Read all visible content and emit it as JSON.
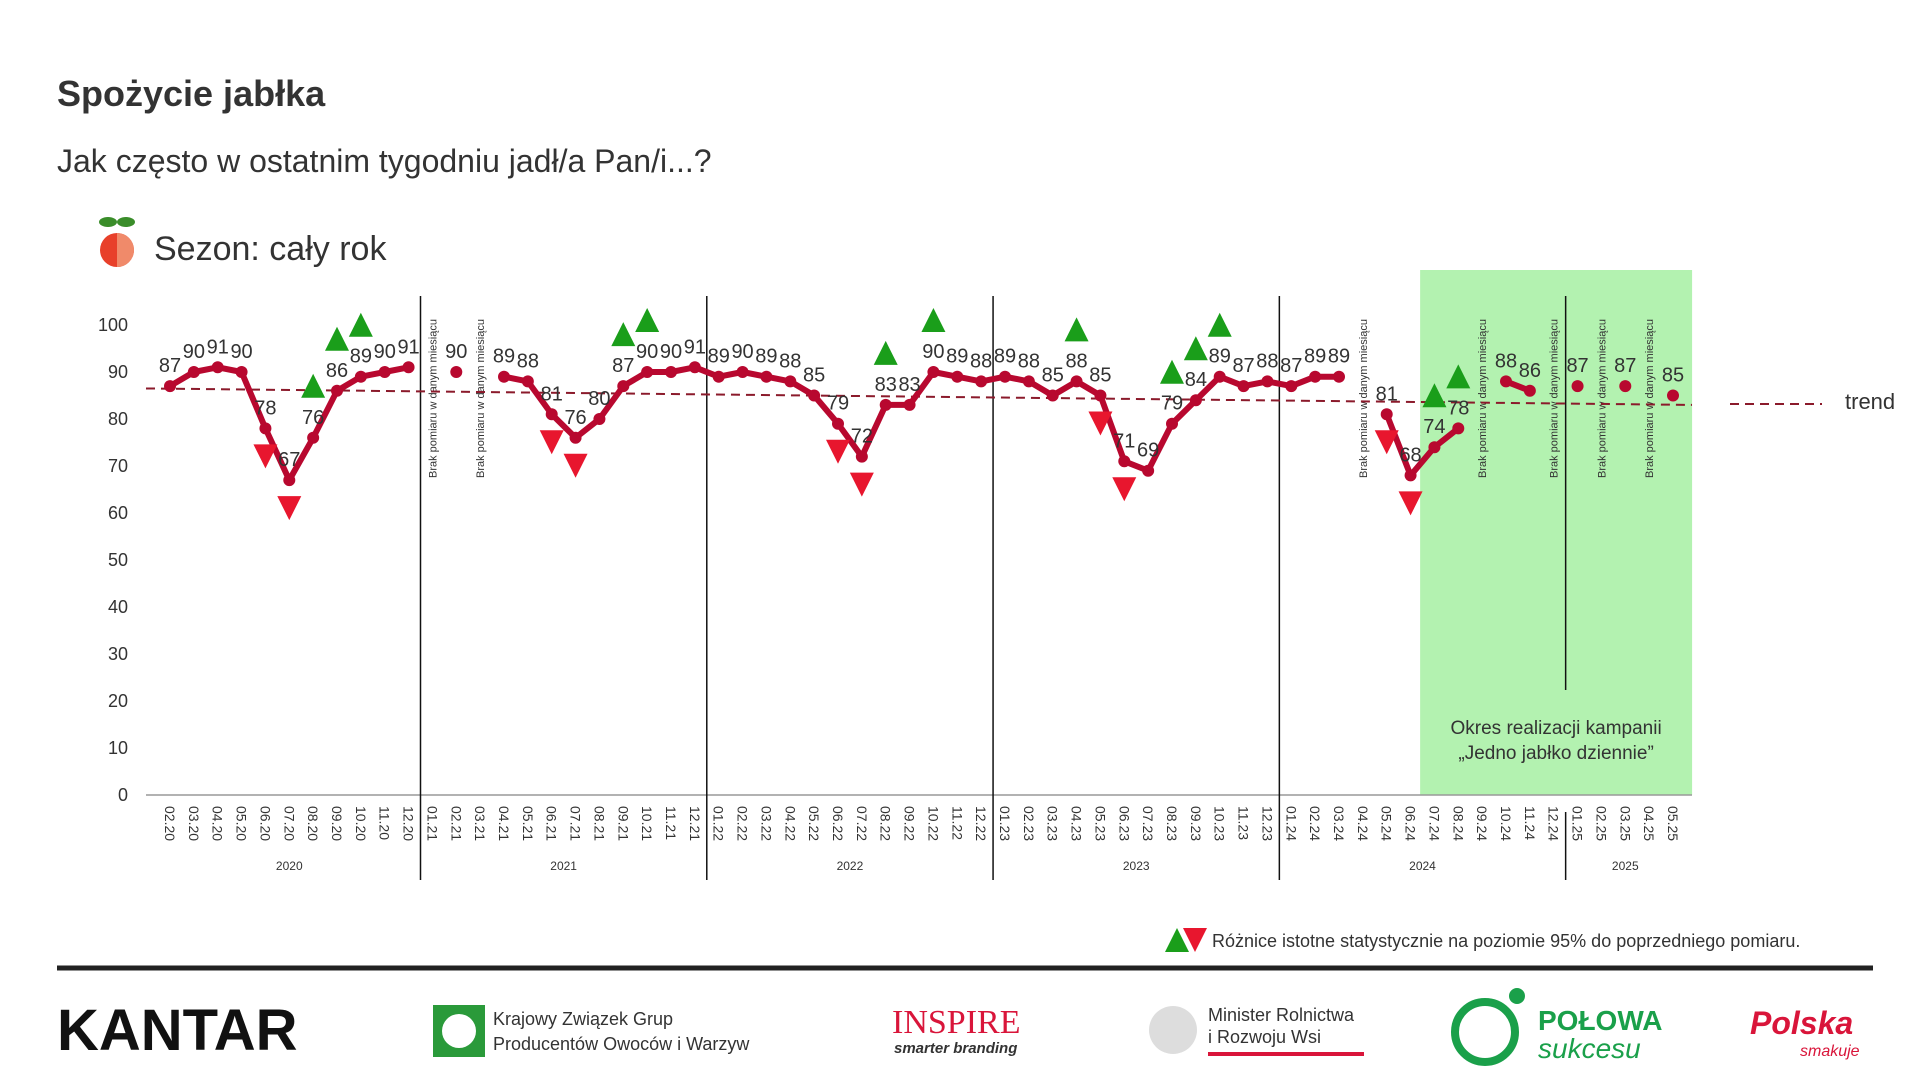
{
  "header": {
    "title": "Spożycie jabłka",
    "subtitle": "Jak często w ostatnim tygodniu jadł/a Pan/i...?",
    "season": "Sezon: cały rok"
  },
  "chart_data": {
    "type": "line",
    "categories": [
      "02.20",
      "03.20",
      "04.20",
      "05.20",
      "06.20",
      "07.20",
      "08.20",
      "09.20",
      "10.20",
      "11.20",
      "12.20",
      "01.21",
      "02.21",
      "03.21",
      "04.21",
      "05.21",
      "06.21",
      "07.21",
      "08.21",
      "09.21",
      "10.21",
      "11.21",
      "12.21",
      "01.22",
      "02.22",
      "03.22",
      "04.22",
      "05.22",
      "06.22",
      "07.22",
      "08.22",
      "09.22",
      "10.22",
      "11.22",
      "12.22",
      "01.23",
      "02.23",
      "03.23",
      "04.23",
      "05.23",
      "06.23",
      "07.23",
      "08.23",
      "09.23",
      "10.23",
      "11.23",
      "12.23",
      "01.24",
      "02.24",
      "03.24",
      "04.24",
      "05.24",
      "06.24",
      "07.24",
      "08.24",
      "09.24",
      "10.24",
      "11.24",
      "12.24",
      "01.25",
      "02.25",
      "03.25",
      "04.25",
      "05.25"
    ],
    "series": [
      {
        "color": "#b8082f",
        "values": [
          87,
          90,
          91,
          90,
          78,
          67,
          76,
          86,
          89,
          90,
          91,
          null,
          90,
          null,
          89,
          88,
          81,
          76,
          80,
          87,
          90,
          90,
          91,
          89,
          90,
          89,
          88,
          85,
          79,
          72,
          83,
          83,
          90,
          89,
          88,
          89,
          88,
          85,
          88,
          85,
          71,
          69,
          79,
          84,
          89,
          87,
          88,
          87,
          89,
          89,
          null,
          81,
          68,
          74,
          78,
          null,
          88,
          86,
          null,
          87,
          null,
          87,
          null,
          85
        ],
        "significance": [
          null,
          null,
          null,
          null,
          "down",
          "down",
          "up",
          "up",
          "up",
          null,
          null,
          null,
          null,
          null,
          null,
          null,
          "down",
          "down",
          null,
          "up",
          "up",
          null,
          null,
          null,
          null,
          null,
          null,
          null,
          "down",
          "down",
          "up",
          null,
          "up",
          null,
          null,
          null,
          null,
          null,
          "up",
          "down",
          "down",
          null,
          "up",
          "up",
          "up",
          null,
          null,
          null,
          null,
          null,
          null,
          "down",
          "down",
          "up",
          "up",
          null,
          null,
          null,
          null,
          null,
          null,
          null,
          null,
          null
        ]
      }
    ],
    "trend": {
      "name": "trend",
      "start": 86.5,
      "end": 83,
      "color": "#8b1a2b"
    },
    "ylim": [
      0,
      100
    ],
    "yticks": [
      0,
      10,
      20,
      30,
      40,
      50,
      60,
      70,
      80,
      90,
      100
    ],
    "years": [
      {
        "label": "2020",
        "from": "02.20",
        "to": "12.20"
      },
      {
        "label": "2021",
        "from": "01.21",
        "to": "12.21"
      },
      {
        "label": "2022",
        "from": "01.22",
        "to": "12.22"
      },
      {
        "label": "2023",
        "from": "01.23",
        "to": "12.23"
      },
      {
        "label": "2024",
        "from": "01.24",
        "to": "12.24"
      },
      {
        "label": "2025",
        "from": "01.25",
        "to": "05.25"
      }
    ],
    "annotations": [
      {
        "text": "Brak pomiaru w danym miesiącu",
        "category": "01.21"
      },
      {
        "text": "Brak pomiaru w danym miesiącu",
        "category": "03.21"
      },
      {
        "text": "Brak pomiaru w danym miesiącu",
        "category": "04.24"
      },
      {
        "text": "Brak pomiaru w danym miesiącu",
        "category": "09.24"
      },
      {
        "text": "Brak pomiaru w danym miesiącu",
        "category": "12.24"
      },
      {
        "text": "Brak pomiaru w danym miesiącu",
        "category": "02.25"
      },
      {
        "text": "Brak pomiaru w danym miesiącu",
        "category": "04.25"
      }
    ],
    "campaign": {
      "lines": [
        "Okres realizacji kampanii",
        "„Jedno jabłko dziennie”"
      ],
      "from": "07.24",
      "to": "05.25",
      "color": "#b3f2b0"
    },
    "significance_note": "Różnice istotne statystycznie na poziomie 95% do poprzedniego pomiaru.",
    "up_color": "#1a9e1a",
    "down_color": "#e8162e"
  },
  "logos": {
    "kantar": "KANTAR",
    "kzgpow": [
      "Krajowy Związek Grup",
      "Producentów Owoców i Warzyw"
    ],
    "inspire": [
      "INSPIRE",
      "smarter branding"
    ],
    "minister": [
      "Minister Rolnictwa",
      "i Rozwoju Wsi"
    ],
    "polowa": [
      "POŁOWA",
      "sukcesu"
    ],
    "polska": [
      "Polska",
      "smakuje"
    ]
  }
}
